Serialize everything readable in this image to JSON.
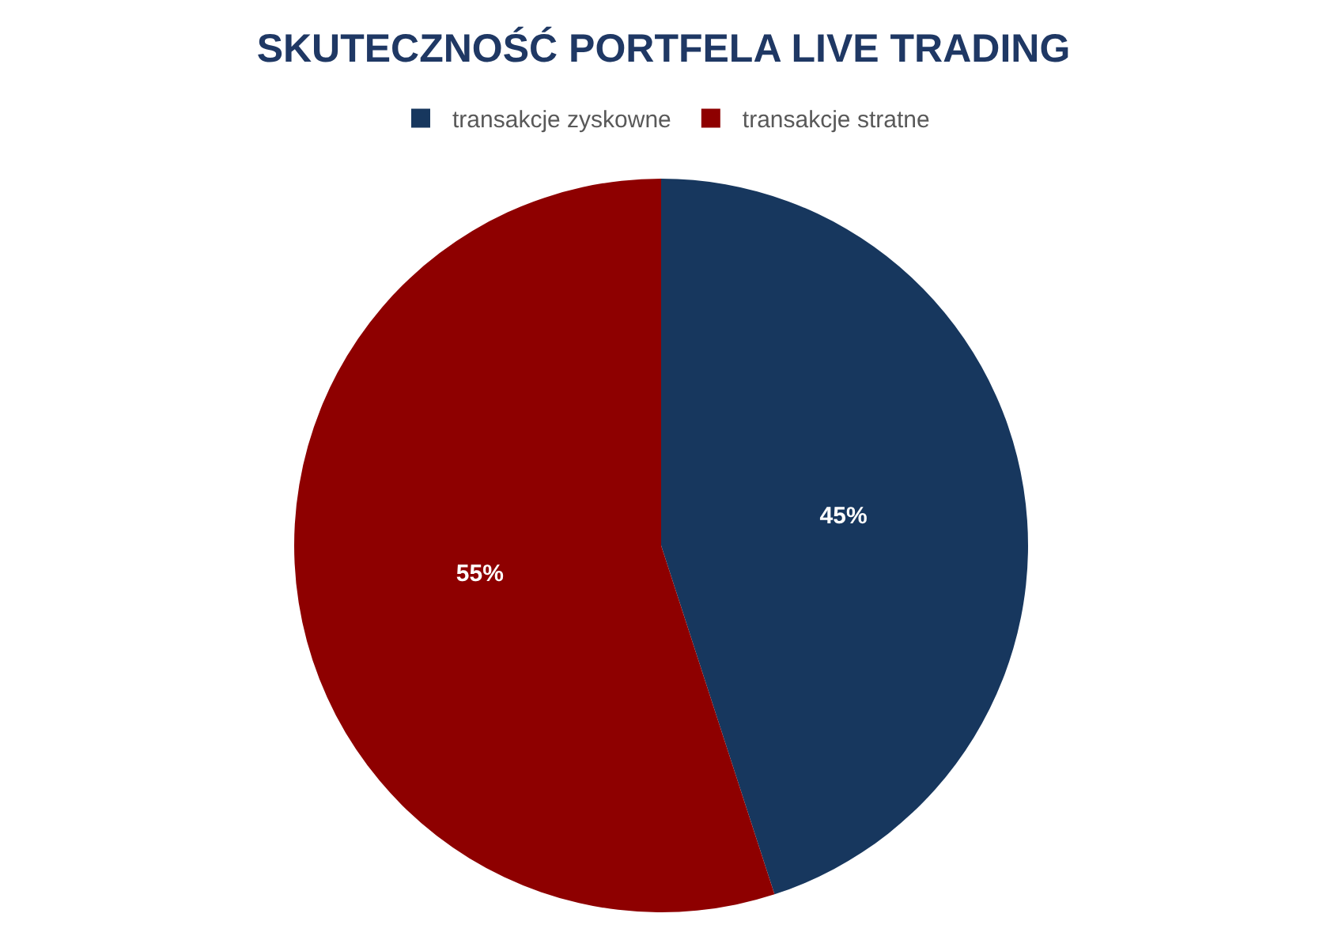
{
  "chart_data": {
    "type": "pie",
    "title": "SKUTECZNOŚĆ PORTFELA LIVE TRADING",
    "categories": [
      "transakcje zyskowne",
      "transakcje stratne"
    ],
    "values": [
      45,
      55
    ],
    "colors": [
      "#17375e",
      "#8e0000"
    ],
    "value_labels": [
      "45%",
      "55%"
    ],
    "legend": "top"
  }
}
